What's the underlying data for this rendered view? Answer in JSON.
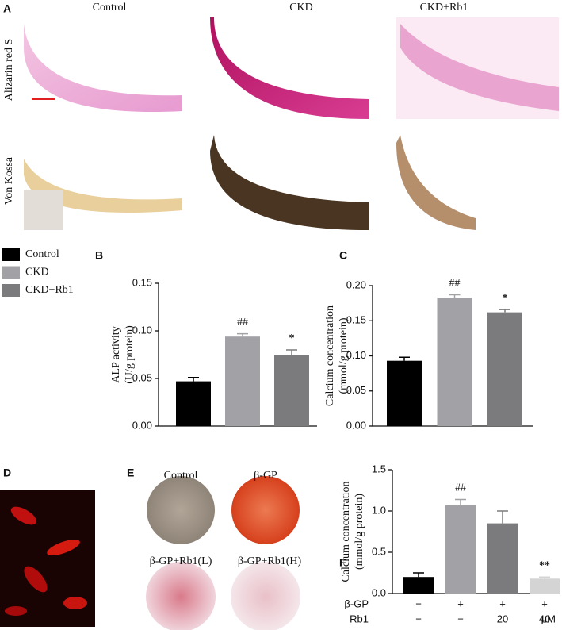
{
  "panel_labels": [
    "A",
    "B",
    "C",
    "D",
    "E",
    "F"
  ],
  "panel_a": {
    "column_titles": [
      "Control",
      "CKD",
      "CKD+Rb1"
    ],
    "row_titles": [
      "Alizarin red S",
      "Von Kossa"
    ]
  },
  "panel_e": {
    "labels": [
      "Control",
      "β-GP",
      "β-GP+Rb1(L)",
      "β-GP+Rb1(H)"
    ]
  },
  "legend": [
    {
      "name": "Control",
      "color": "#000000"
    },
    {
      "name": "CKD",
      "color": "#a2a2a6"
    },
    {
      "name": "CKD+Rb1",
      "color": "#7b7b7d"
    }
  ],
  "chart_data": [
    {
      "type": "bar",
      "ylabel": [
        "ALP activity",
        "(U/g protein)"
      ],
      "values": [
        0.047,
        0.094,
        0.075
      ],
      "errors": [
        0.004,
        0.003,
        0.005
      ],
      "colors": [
        "#000000",
        "#a2a2a6",
        "#7b7b7d"
      ],
      "annotations": [
        null,
        "##",
        "*"
      ],
      "ylim": [
        0,
        0.15
      ],
      "yticks": [
        {
          "value": 0,
          "label": "0.00"
        },
        0.05,
        {
          "value": 0.1,
          "label": "0.10"
        },
        0.15
      ]
    },
    {
      "type": "bar",
      "ylabel": [
        "Calcium concentration",
        "(mmol/g protein)"
      ],
      "values": [
        0.093,
        0.183,
        0.162
      ],
      "errors": [
        0.005,
        0.004,
        0.004
      ],
      "colors": [
        "#000000",
        "#a2a2a6",
        "#7b7b7d"
      ],
      "annotations": [
        null,
        "##",
        "*"
      ],
      "ylim": [
        0,
        0.2
      ],
      "yticks": [
        {
          "value": 0,
          "label": "0.00"
        },
        0.05,
        {
          "value": 0.1,
          "label": "0.10"
        },
        0.15,
        {
          "value": 0.2,
          "label": "0.20"
        }
      ]
    },
    {
      "type": "bar",
      "ylabel": [
        "Calcium concentration",
        "(mmol/g protein)"
      ],
      "values": [
        0.2,
        1.07,
        0.85,
        0.18
      ],
      "errors": [
        0.05,
        0.07,
        0.15,
        0.02
      ],
      "colors": [
        "#000000",
        "#a2a2a6",
        "#7b7b7d",
        "#d4d4d4"
      ],
      "annotations": [
        null,
        "##",
        null,
        "**"
      ],
      "ylim": [
        0,
        1.5
      ],
      "yticks": [
        {
          "value": 0,
          "label": "0.0"
        },
        0.5,
        {
          "value": 1,
          "label": "1.0"
        },
        1.5
      ],
      "x_table": {
        "rows": [
          {
            "label": "β-GP",
            "values": [
              "−",
              "+",
              "+",
              "+"
            ]
          },
          {
            "label": "Rb1",
            "values": [
              "−",
              "−",
              "20",
              "40"
            ]
          }
        ],
        "unit": "μM"
      }
    }
  ]
}
